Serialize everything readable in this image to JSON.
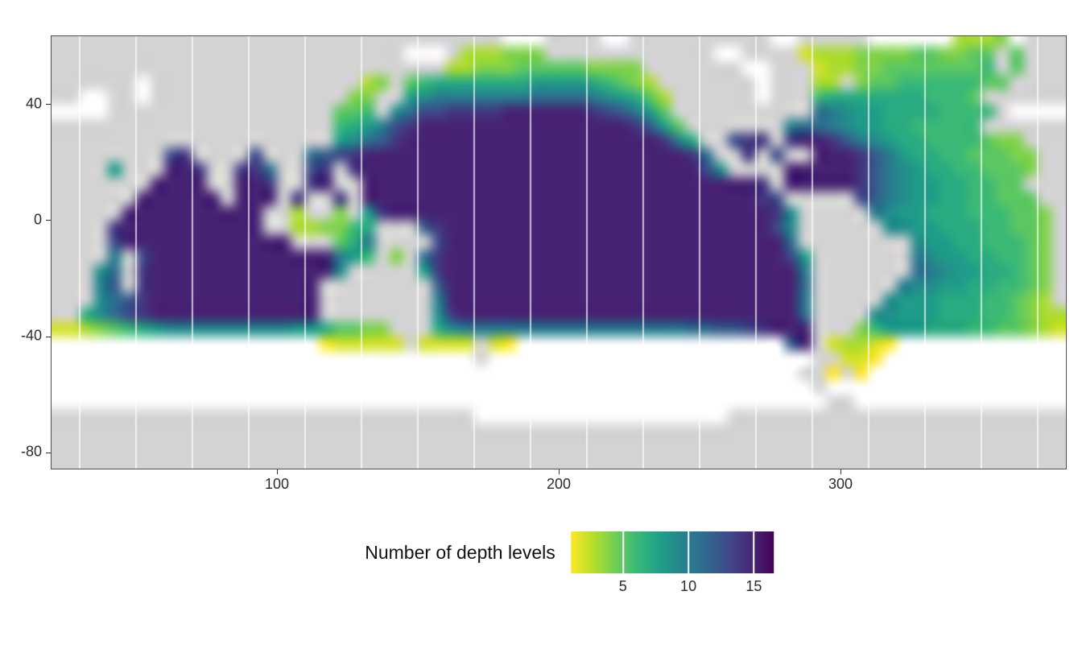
{
  "chart_data": {
    "type": "heatmap",
    "title": "",
    "legend_title": "Number of depth levels",
    "x_range": [
      20,
      380
    ],
    "y_range": [
      -85.5,
      63.5
    ],
    "grid_extent": {
      "lon": [
        20,
        380
      ],
      "lat": [
        65,
        -85
      ]
    },
    "cell_size_deg": 5,
    "value_min": 1,
    "value_max": 15,
    "graticule_step": 20,
    "graticule_start_lon": 30,
    "axes": {
      "x_ticks": [
        {
          "label": "100",
          "value": 100
        },
        {
          "label": "200",
          "value": 200
        },
        {
          "label": "300",
          "value": 300
        }
      ],
      "y_ticks": [
        {
          "label": "40",
          "value": 40
        },
        {
          "label": "0",
          "value": 0
        },
        {
          "label": "-40",
          "value": -40
        },
        {
          "label": "-80",
          "value": -80
        }
      ]
    },
    "gridlines": {
      "major_lat": [
        40,
        0,
        -40,
        -80
      ],
      "minor_lat": [
        20,
        -20,
        -60
      ],
      "major_lon": [
        100,
        200,
        300
      ],
      "minor_lon": [
        50,
        150,
        250,
        350
      ]
    },
    "legend": {
      "ticks": [
        5,
        10,
        15
      ],
      "domain": [
        1,
        16.5
      ]
    },
    "colors": {
      "land": "#d3d3d3",
      "no_data": "#ffffff",
      "grid_major": "#e4e4e4",
      "grid_minor": "#f2f2f2",
      "graticule": "#ffffff",
      "panel_border": "#4d4d4d",
      "scale_name": "viridis-reversed (yellow = few levels, dark purple = many)",
      "viridis": [
        "#440154",
        "#482878",
        "#3e4989",
        "#31688e",
        "#26828e",
        "#1f9e89",
        "#35b779",
        "#6ece58",
        "#b5de2b",
        "#fde725"
      ]
    },
    "grid_encoding": {
      "L": "land",
      ".": "no data (white)",
      "1-9,a-f": "number of depth levels 1-15"
    },
    "grid_rows_lat_top_to_bottom": [
      "LLLLLLLLLLLLLLLLLLLLLLLLLLLLLLLL...LLLL..LLLLLLLLLL..LLLLL......3334.LLL",
      "LLLLLLLLLLLLLLLLLLLLLLLLL...L333444LLLLLLLLLLLL..LLLL23334444554455L5LLL",
      "LLLLLLLLLLLLLLLLLLLLLLLLLLLL33444555554444LLLLLLL..LLL2334455555556L5LLL",
      "LLLLLL.LLLLLLLLLLLLLLL34L567777777888876543LLLLLLL.LLL33L45566666655LLLL",
      "LL..LL.LLLLLLLLLLLLLL44LL89aaaaaaabbbba98753LLLLLL.LLL677777776665LLLLLL",
      "....LLLLLLLLLLLLLLLL556L9bddeeeeffffffedca85LLLLLLLLLLba98877776666L....",
      "LLLLLLLLLLLLLLLLLLLL678adefffffffffffffffec85LLLLLLLabba9887766666LLLLLL",
      "LLLLLLLLLLLLLLLLLLLL89bceffffffffffffffffffea7LLdeeLeffeca98776666544LLL",
      "LLLLLLLLdeLLLLdLLLbcdefffffffffffffffffffffffebLLeLdLLfffeca8776655544LL",
      "LLLL8LLLffeLLeebLLdeLeffffffffffffffffffffffffd9LLLLfffffeca9877665554LL",
      "LLLLLLLffffLLffeLLefLLffffffffffffffffffffffffffffeLfffffeca988776655LLL",
      "LLLLLLffffffLfffLeLLeLffffffffffffffffffffffffffffedLLLLLdca9887766555LL",
      "LLLLLffffffffffLL3LL4L8efffffffffffffffffffffffffffe9LLLLLa988777666554L",
      "LLLLeffffffffffLL334467LLLcefffffffffffffffffffffffd9LLLLLL998877766554L",
      "LLLLdffffffffffffLLL57aLLLLdffffffffffffffffffffffffbLLLLLLLL9887766654L",
      "LLLLaLdfffffffffffffa86L4Lbeffffffffffffffffffffffffd8LLLLLLLa988776654L",
      "LLL9bLefffffffffffff9LLLLL8efffffffffffffffffffffffffaLLLLLLLba98877654L",
      "LLLacLeffffffffffffLLLLLLLLcfffffffffffffffffffffffffbLLLLLLa9988776654L",
      "LLL9bceffffffffffffLLLLLLLLafffffffffffffffffffffffffaLLLLL988877766543L",
      "LL79bdeffffffffffffLLLLLLLL9effffffffffffffffffffffffbLLLL99888777665433",
      "223456789999999998875544LLL79aaaaaaaaaaaaaaaabbccdefffLLL468887776655432",
      "...................122222L2222L21...................cfL23321............",
      "..............................L.......................LL221.............",
      ".....................................................LL1L1..............",
      "......................................................L.................",
      ".......................................................LL...............",
      "LLLLLLLLLLLLLLLLLLLLLLLLLLLLLL..................LLLLLLLLLLLLLLLLLLLLLLLL",
      "LLLLLLLLLLLLLLLLLLLLLLLLLLLLLLLLLLLLLLLLLLLLLLLLLLLLLLLLLLLLLLLLLLLLLLLL",
      "LLLLLLLLLLLLLLLLLLLLLLLLLLLLLLLLLLLLLLLLLLLLLLLLLLLLLLLLLLLLLLLLLLLLLLLL",
      "LLLLLLLLLLLLLLLLLLLLLLLLLLLLLLLLLLLLLLLLLLLLLLLLLLLLLLLLLLLLLLLLLLLLLLLL"
    ]
  }
}
